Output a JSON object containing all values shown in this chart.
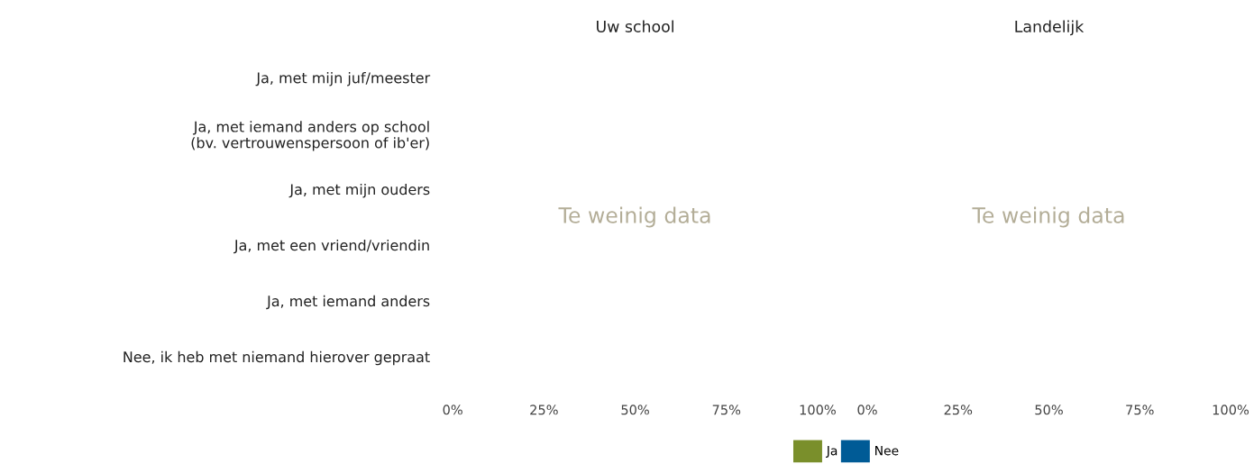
{
  "chart_data": [
    {
      "type": "bar",
      "orientation": "horizontal",
      "title": "Uw school",
      "categories": [
        "Ja, met mijn juf/meester",
        "Ja, met iemand anders op school\n(bv. vertrouwenspersoon of ib'er)",
        "Ja, met mijn ouders",
        "Ja, met een vriend/vriendin",
        "Ja, met iemand anders",
        "Nee, ik heb met niemand hierover gepraat"
      ],
      "series": [
        {
          "name": "Ja",
          "color": "#7a8f2b",
          "values": [
            null,
            null,
            null,
            null,
            null,
            null
          ]
        },
        {
          "name": "Nee",
          "color": "#005b96",
          "values": [
            null,
            null,
            null,
            null,
            null,
            null
          ]
        }
      ],
      "xlim": [
        0,
        100
      ],
      "xticks": [
        {
          "value": 0,
          "label": "0%"
        },
        {
          "value": 25,
          "label": "25%"
        },
        {
          "value": 50,
          "label": "50%"
        },
        {
          "value": 75,
          "label": "75%"
        },
        {
          "value": 100,
          "label": "100%"
        }
      ],
      "annotations": [
        "Te weinig data"
      ],
      "legend": "bottom",
      "grid": false
    },
    {
      "type": "bar",
      "orientation": "horizontal",
      "title": "Landelijk",
      "categories": [
        null,
        null,
        null,
        null,
        null,
        null
      ],
      "series": [
        {
          "color": "#7a8f2b",
          "values": [
            null,
            null,
            null,
            null,
            null,
            null
          ]
        },
        {
          "color": "#005b96",
          "values": [
            null,
            null,
            null,
            null,
            null,
            null
          ]
        }
      ],
      "xlim": [
        0,
        100
      ],
      "xticks": [
        {
          "value": 0,
          "label": "0%"
        },
        {
          "value": 25,
          "label": "25%"
        },
        {
          "value": 50,
          "label": "50%"
        },
        {
          "value": 75,
          "label": "75%"
        },
        {
          "value": 100,
          "label": "100%"
        }
      ],
      "annotations": [
        "Te weinig data"
      ],
      "tick_labels": "x",
      "grid": false
    }
  ]
}
